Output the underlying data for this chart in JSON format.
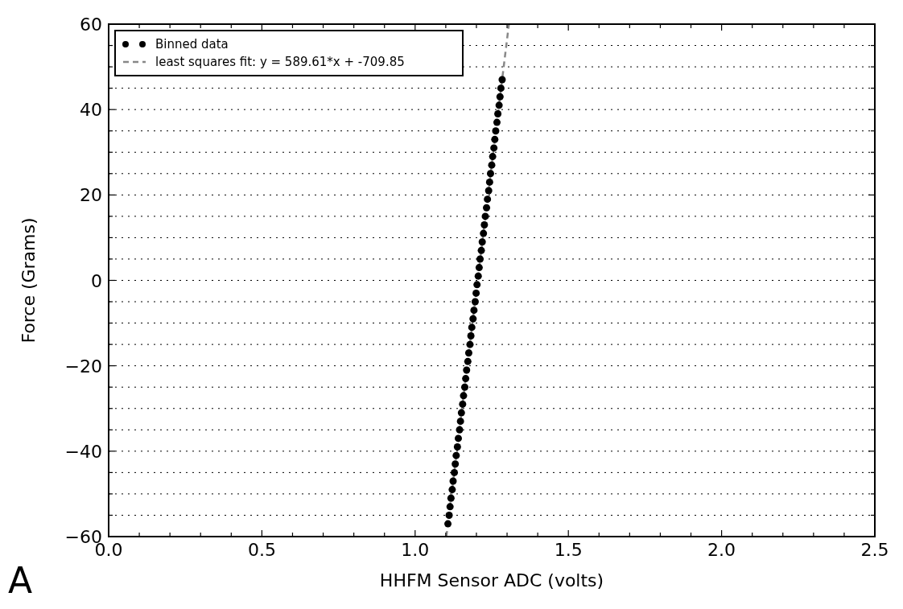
{
  "chart_data": {
    "type": "scatter",
    "xlabel": "HHFM Sensor ADC (volts)",
    "ylabel": "Force (Grams)",
    "annotations": [
      "A"
    ],
    "xlim": [
      0,
      2.5
    ],
    "ylim": [
      -60,
      60
    ],
    "xticks": [
      {
        "value": 0,
        "label": "0.0"
      },
      {
        "value": 0.1,
        "label": null
      },
      {
        "value": 0.2,
        "label": null
      },
      {
        "value": 0.3,
        "label": null
      },
      {
        "value": 0.4,
        "label": null
      },
      {
        "value": 0.5,
        "label": "0.5"
      },
      {
        "value": 0.6,
        "label": null
      },
      {
        "value": 0.7,
        "label": null
      },
      {
        "value": 0.8,
        "label": null
      },
      {
        "value": 0.9,
        "label": null
      },
      {
        "value": 1,
        "label": "1.0"
      },
      {
        "value": 1.1,
        "label": null
      },
      {
        "value": 1.2,
        "label": null
      },
      {
        "value": 1.3,
        "label": null
      },
      {
        "value": 1.4,
        "label": null
      },
      {
        "value": 1.5,
        "label": "1.5"
      },
      {
        "value": 1.6,
        "label": null
      },
      {
        "value": 1.7,
        "label": null
      },
      {
        "value": 1.8,
        "label": null
      },
      {
        "value": 1.9,
        "label": null
      },
      {
        "value": 2,
        "label": "2.0"
      },
      {
        "value": 2.1,
        "label": null
      },
      {
        "value": 2.2,
        "label": null
      },
      {
        "value": 2.3,
        "label": null
      },
      {
        "value": 2.4,
        "label": null
      },
      {
        "value": 2.5,
        "label": "2.5"
      }
    ],
    "yticks": [
      {
        "value": -60,
        "label": "−60"
      },
      {
        "value": -55,
        "label": null
      },
      {
        "value": -50,
        "label": null
      },
      {
        "value": -45,
        "label": null
      },
      {
        "value": -40,
        "label": "−40"
      },
      {
        "value": -35,
        "label": null
      },
      {
        "value": -30,
        "label": null
      },
      {
        "value": -25,
        "label": null
      },
      {
        "value": -20,
        "label": "−20"
      },
      {
        "value": -15,
        "label": null
      },
      {
        "value": -10,
        "label": null
      },
      {
        "value": -5,
        "label": null
      },
      0,
      {
        "value": 5,
        "label": null
      },
      {
        "value": 10,
        "label": null
      },
      {
        "value": 15,
        "label": null
      },
      20,
      {
        "value": 25,
        "label": null
      },
      {
        "value": 30,
        "label": null
      },
      {
        "value": 35,
        "label": null
      },
      40,
      {
        "value": 45,
        "label": null
      },
      {
        "value": 50,
        "label": null
      },
      {
        "value": 55,
        "label": null
      },
      60
    ],
    "grid": "y",
    "legend": "top left",
    "series": [
      {
        "name": "Binned data",
        "color": "#000000",
        "marker": "circle",
        "x": [
          1.107,
          1.111,
          1.114,
          1.117,
          1.121,
          1.124,
          1.128,
          1.131,
          1.134,
          1.138,
          1.141,
          1.145,
          1.148,
          1.151,
          1.155,
          1.158,
          1.162,
          1.165,
          1.168,
          1.172,
          1.175,
          1.179,
          1.182,
          1.185,
          1.189,
          1.192,
          1.196,
          1.199,
          1.202,
          1.206,
          1.209,
          1.212,
          1.216,
          1.219,
          1.223,
          1.226,
          1.229,
          1.233,
          1.236,
          1.24,
          1.243,
          1.246,
          1.25,
          1.253,
          1.257,
          1.26,
          1.263,
          1.267,
          1.27,
          1.274,
          1.277,
          1.28,
          1.284
        ],
        "values": [
          -57,
          -55,
          -53,
          -51,
          -49,
          -47,
          -45,
          -43,
          -41,
          -39,
          -37,
          -35,
          -33,
          -31,
          -29,
          -27,
          -25,
          -23,
          -21,
          -19,
          -17,
          -15,
          -13,
          -11,
          -9,
          -7,
          -5,
          -3,
          -1,
          1,
          3,
          5,
          7,
          9,
          11,
          13,
          15,
          17,
          19,
          21,
          23,
          25,
          27,
          29,
          31,
          33,
          35,
          37,
          39,
          41,
          43,
          45,
          47
        ]
      },
      {
        "name": "least squares fit: y = 589.61*x + -709.85",
        "type": "line",
        "color": "#888888",
        "line_style": "dashed",
        "x": [
          1.102,
          1.306
        ],
        "values": [
          -60,
          60
        ]
      }
    ]
  }
}
